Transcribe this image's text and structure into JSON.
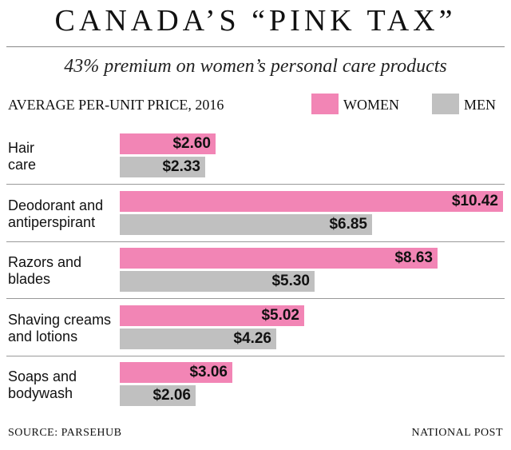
{
  "header": {
    "title": "CANADA’S “PINK TAX”",
    "subtitle": "43% premium on women’s personal care products"
  },
  "footer": {
    "source": "SOURCE: PARSEHUB",
    "credit": "NATIONAL POST"
  },
  "colors": {
    "women": "#f285b5",
    "men": "#c0c0c0"
  },
  "chart_data": {
    "type": "bar",
    "orientation": "horizontal",
    "title": "CANADA’S “PINK TAX”",
    "subtitle": "43% premium on women’s personal care products",
    "units_label": "AVERAGE PER-UNIT PRICE, 2016",
    "legend_position": "top-right",
    "grid": false,
    "xlim": [
      0,
      10.42
    ],
    "categories": [
      [
        "Hair",
        "care"
      ],
      [
        "Deodorant and",
        "antiperspirant"
      ],
      [
        "Razors and",
        "blades"
      ],
      [
        "Shaving creams",
        "and lotions"
      ],
      [
        "Soaps and",
        "bodywash"
      ]
    ],
    "series": [
      {
        "name": "WOMEN",
        "color": "#f285b5",
        "values": [
          2.6,
          10.42,
          8.63,
          5.02,
          3.06
        ],
        "labels": [
          "$2.60",
          "$10.42",
          "$8.63",
          "$5.02",
          "$3.06"
        ]
      },
      {
        "name": "MEN",
        "color": "#c0c0c0",
        "values": [
          2.33,
          6.85,
          5.3,
          4.26,
          2.06
        ],
        "labels": [
          "$2.33",
          "$6.85",
          "$5.30",
          "$4.26",
          "$2.06"
        ]
      }
    ]
  }
}
